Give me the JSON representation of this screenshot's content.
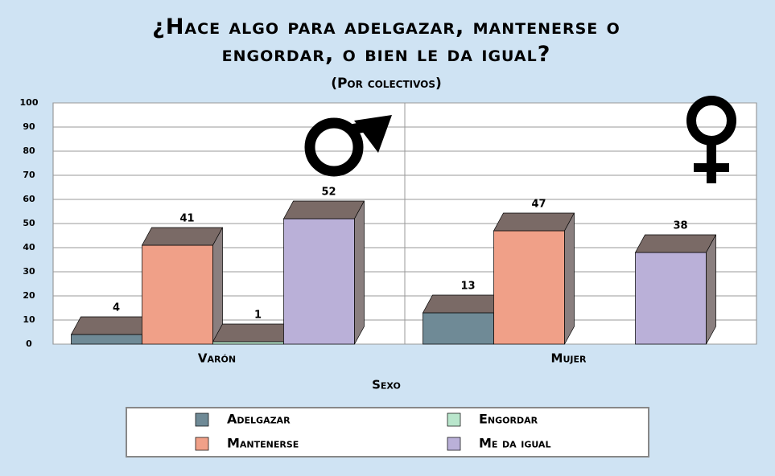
{
  "chart_data": {
    "type": "bar3d",
    "title": "¿Hace algo para adelgazar, mantenerse o engordar, o bien le da igual?",
    "subtitle": "(Por colectivos)",
    "x_label": "Sexo",
    "categories": [
      "Varón",
      "Mujer"
    ],
    "series": [
      {
        "name": "Adelgazar",
        "color": "#6f8a96",
        "values": [
          4,
          13
        ]
      },
      {
        "name": "Mantenerse",
        "color": "#f0a088",
        "values": [
          41,
          47
        ]
      },
      {
        "name": "Engordar",
        "color": "#b9e6cc",
        "values": [
          1,
          null
        ]
      },
      {
        "name": "Me da igual",
        "color": "#bab0d8",
        "values": [
          52,
          38
        ]
      }
    ],
    "ylim": [
      0,
      100
    ],
    "yticks": [
      0,
      10,
      20,
      30,
      40,
      50,
      60,
      70,
      80,
      90,
      100
    ],
    "grid": true
  }
}
